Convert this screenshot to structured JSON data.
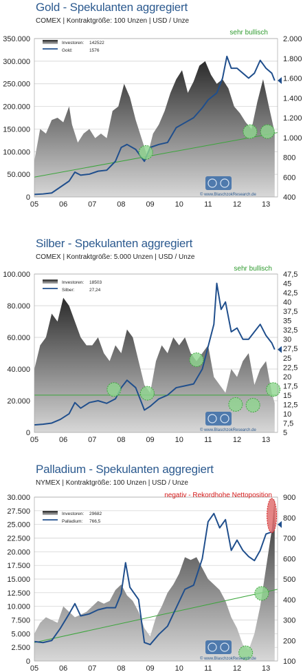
{
  "charts": [
    {
      "title": "Gold - Spekulanten aggregiert",
      "subtitle": "COMEX  |   Kontraktgröße: 100 Unzen   |   USD / Unze",
      "annotation": "sehr bullisch",
      "annotation_color": "#2e9a2e",
      "legend_rows": [
        {
          "label": "Investoren:",
          "value": "142522"
        },
        {
          "label": "Gold:",
          "value": "1576"
        }
      ],
      "logo_url": "© www.BlaschzokResearch.de"
    },
    {
      "title": "Silber - Spekulanten aggregiert",
      "subtitle": "COMEX  |   Kontraktgröße: 5.000 Unzen   |   USD / Unze",
      "annotation": "sehr bullisch",
      "annotation_color": "#2e9a2e",
      "legend_rows": [
        {
          "label": "Investoren:",
          "value": "18503"
        },
        {
          "label": "Silber:",
          "value": "27,24"
        }
      ],
      "logo_url": "© www.BlaschzokResearch.de"
    },
    {
      "title": "Palladium - Spekulanten aggregiert",
      "subtitle": "NYMEX  |   Kontraktgröße: 100 Unzen   |   USD / Unze",
      "annotation": "negativ - Rekordhohe Nettoposition",
      "annotation_color": "#d41a1a",
      "legend_rows": [
        {
          "label": "Investoren:",
          "value": "29682"
        },
        {
          "label": "Palladium:",
          "value": "766,5"
        }
      ],
      "logo_url": "© www.BlaschzokResearch.de"
    }
  ],
  "colors": {
    "price_line": "#1f4e8c",
    "trend_line": "#3aa53a",
    "circle_fill": "#8fd68f",
    "circle_stroke": "#3aa53a",
    "circle_red_fill": "#e07070",
    "circle_red_stroke": "#d41a1a",
    "grid": "#cccccc"
  },
  "chart_data": [
    {
      "type": "area",
      "title": "Gold - Spekulanten aggregiert",
      "x_tick_labels": [
        "05",
        "06",
        "07",
        "08",
        "09",
        "10",
        "11",
        "12",
        "13"
      ],
      "x_range": [
        2005.0,
        2013.4
      ],
      "y_left": {
        "ticks": [
          "0",
          "50.000",
          "100.000",
          "150.000",
          "200.000",
          "250.000",
          "300.000",
          "350.000"
        ],
        "range": [
          0,
          350000
        ]
      },
      "y_right": {
        "ticks": [
          "400",
          "600",
          "800",
          "1.000",
          "1.200",
          "1.400",
          "1.600",
          "1.800",
          "2.000"
        ],
        "range": [
          400,
          2000
        ]
      },
      "grid": true,
      "legend_position": "top-left",
      "series": [
        {
          "name": "Investoren",
          "axis": "left",
          "x": [
            2005.0,
            2005.2,
            2005.4,
            2005.6,
            2005.8,
            2006.0,
            2006.2,
            2006.3,
            2006.5,
            2006.7,
            2006.9,
            2007.1,
            2007.3,
            2007.5,
            2007.7,
            2007.9,
            2008.1,
            2008.3,
            2008.5,
            2008.7,
            2008.9,
            2009.1,
            2009.3,
            2009.5,
            2009.7,
            2009.9,
            2010.1,
            2010.3,
            2010.5,
            2010.7,
            2010.9,
            2011.1,
            2011.3,
            2011.5,
            2011.7,
            2011.9,
            2012.1,
            2012.3,
            2012.5,
            2012.7,
            2012.9,
            2013.1,
            2013.3
          ],
          "values": [
            80000,
            150000,
            140000,
            170000,
            175000,
            165000,
            200000,
            160000,
            120000,
            140000,
            150000,
            130000,
            140000,
            130000,
            190000,
            200000,
            250000,
            220000,
            170000,
            130000,
            90000,
            140000,
            160000,
            190000,
            230000,
            260000,
            280000,
            230000,
            255000,
            290000,
            300000,
            270000,
            250000,
            260000,
            240000,
            200000,
            185000,
            165000,
            150000,
            210000,
            260000,
            200000,
            142522
          ]
        },
        {
          "name": "Gold",
          "axis": "right",
          "x": [
            2005.0,
            2005.3,
            2005.6,
            2005.9,
            2006.2,
            2006.4,
            2006.6,
            2006.9,
            2007.2,
            2007.5,
            2007.8,
            2008.0,
            2008.2,
            2008.5,
            2008.8,
            2009.0,
            2009.3,
            2009.6,
            2009.9,
            2010.2,
            2010.5,
            2010.8,
            2011.0,
            2011.3,
            2011.5,
            2011.65,
            2011.8,
            2012.0,
            2012.2,
            2012.4,
            2012.6,
            2012.8,
            2013.0,
            2013.2,
            2013.3
          ],
          "values": [
            425,
            430,
            440,
            500,
            560,
            650,
            620,
            630,
            660,
            670,
            760,
            900,
            930,
            880,
            760,
            900,
            930,
            950,
            1100,
            1150,
            1200,
            1300,
            1380,
            1450,
            1600,
            1820,
            1700,
            1700,
            1650,
            1600,
            1650,
            1780,
            1700,
            1650,
            1576
          ]
        }
      ],
      "trendline": {
        "x": [
          2005.0,
          2013.4
        ],
        "values": [
          600,
          1050
        ],
        "axis": "right"
      },
      "highlights": [
        {
          "x": 2008.85,
          "y": 850
        },
        {
          "x": 2012.45,
          "y": 1060
        },
        {
          "x": 2013.05,
          "y": 1060
        }
      ]
    },
    {
      "type": "area",
      "title": "Silber - Spekulanten aggregiert",
      "x_tick_labels": [
        "05",
        "06",
        "07",
        "08",
        "09",
        "10",
        "11",
        "12",
        "13"
      ],
      "x_range": [
        2005.0,
        2013.4
      ],
      "y_left": {
        "ticks": [
          "0",
          "20.000",
          "40.000",
          "60.000",
          "80.000",
          "100.000"
        ],
        "range": [
          0,
          100000
        ]
      },
      "y_right": {
        "ticks": [
          "5",
          "7,5",
          "10",
          "12,5",
          "15",
          "17,5",
          "20",
          "22,5",
          "25",
          "27,5",
          "30",
          "32,5",
          "35",
          "37,5",
          "40",
          "42,5",
          "45",
          "47,5"
        ],
        "range": [
          5,
          47.5
        ]
      },
      "grid": true,
      "legend_position": "top-left",
      "series": [
        {
          "name": "Investoren",
          "axis": "left",
          "x": [
            2005.0,
            2005.2,
            2005.4,
            2005.6,
            2005.8,
            2006.0,
            2006.2,
            2006.4,
            2006.6,
            2006.8,
            2007.0,
            2007.2,
            2007.4,
            2007.6,
            2007.8,
            2008.0,
            2008.2,
            2008.4,
            2008.6,
            2008.8,
            2009.0,
            2009.2,
            2009.4,
            2009.6,
            2009.8,
            2010.0,
            2010.2,
            2010.4,
            2010.6,
            2010.8,
            2011.0,
            2011.2,
            2011.4,
            2011.6,
            2011.8,
            2012.0,
            2012.2,
            2012.4,
            2012.6,
            2012.8,
            2013.0,
            2013.2,
            2013.3
          ],
          "values": [
            40000,
            55000,
            60000,
            75000,
            70000,
            85000,
            80000,
            70000,
            60000,
            55000,
            55000,
            60000,
            50000,
            45000,
            55000,
            50000,
            65000,
            60000,
            45000,
            30000,
            25000,
            45000,
            55000,
            50000,
            60000,
            55000,
            60000,
            50000,
            45000,
            50000,
            55000,
            35000,
            30000,
            25000,
            40000,
            35000,
            45000,
            50000,
            30000,
            40000,
            45000,
            25000,
            18503
          ]
        },
        {
          "name": "Silber",
          "axis": "right",
          "x": [
            2005.0,
            2005.3,
            2005.6,
            2005.9,
            2006.2,
            2006.4,
            2006.6,
            2006.9,
            2007.2,
            2007.5,
            2007.8,
            2008.0,
            2008.2,
            2008.5,
            2008.8,
            2009.0,
            2009.3,
            2009.6,
            2009.9,
            2010.2,
            2010.5,
            2010.8,
            2011.0,
            2011.2,
            2011.3,
            2011.45,
            2011.6,
            2011.8,
            2012.0,
            2012.2,
            2012.4,
            2012.6,
            2012.8,
            2013.0,
            2013.2,
            2013.3
          ],
          "values": [
            7,
            7.2,
            7.5,
            8.5,
            10,
            13,
            11.5,
            13,
            13.5,
            12.8,
            14,
            17,
            19,
            17,
            11,
            12,
            14,
            15,
            17,
            17.5,
            18,
            22,
            28,
            34,
            45,
            38,
            40,
            32,
            33,
            30,
            30,
            32,
            34,
            31,
            29,
            27.24
          ]
        }
      ],
      "trendline": {
        "x": [
          2005.0,
          2013.4
        ],
        "values": [
          15,
          15
        ],
        "axis": "right"
      },
      "highlights": [
        {
          "x": 2007.75,
          "y": 16.5
        },
        {
          "x": 2008.9,
          "y": 15.5
        },
        {
          "x": 2010.6,
          "y": 24.5
        },
        {
          "x": 2011.95,
          "y": 12.5
        },
        {
          "x": 2012.55,
          "y": 12.3
        },
        {
          "x": 2013.25,
          "y": 16.5
        }
      ]
    },
    {
      "type": "area",
      "title": "Palladium - Spekulanten aggregiert",
      "x_tick_labels": [
        "05",
        "06",
        "07",
        "08",
        "09",
        "10",
        "11",
        "12",
        "13"
      ],
      "x_range": [
        2005.0,
        2013.4
      ],
      "y_left": {
        "ticks": [
          "0",
          "2.500",
          "5.000",
          "7.500",
          "10.000",
          "12.500",
          "15.000",
          "17.500",
          "20.000",
          "22.500",
          "25.000",
          "27.500",
          "30.000"
        ],
        "range": [
          0,
          30000
        ]
      },
      "y_right": {
        "ticks": [
          "100",
          "200",
          "300",
          "400",
          "500",
          "600",
          "700",
          "800",
          "900"
        ],
        "range": [
          100,
          900
        ]
      },
      "grid": true,
      "legend_position": "top-left",
      "series": [
        {
          "name": "Investoren",
          "axis": "left",
          "x": [
            2005.0,
            2005.2,
            2005.4,
            2005.6,
            2005.8,
            2006.0,
            2006.2,
            2006.4,
            2006.6,
            2006.8,
            2007.0,
            2007.2,
            2007.4,
            2007.6,
            2007.8,
            2008.0,
            2008.2,
            2008.4,
            2008.6,
            2008.8,
            2009.0,
            2009.2,
            2009.4,
            2009.6,
            2009.8,
            2010.0,
            2010.2,
            2010.4,
            2010.6,
            2010.8,
            2011.0,
            2011.2,
            2011.4,
            2011.6,
            2011.8,
            2012.0,
            2012.2,
            2012.4,
            2012.6,
            2012.8,
            2013.0,
            2013.2,
            2013.3
          ],
          "values": [
            5000,
            7000,
            8000,
            7500,
            7000,
            10000,
            9000,
            8000,
            8500,
            9000,
            10000,
            11000,
            10500,
            11000,
            13000,
            14000,
            12000,
            11000,
            9000,
            6000,
            4500,
            8000,
            10000,
            12500,
            14000,
            16000,
            19000,
            18500,
            19000,
            17000,
            15000,
            14000,
            13000,
            11000,
            8000,
            6000,
            3000,
            2000,
            5000,
            10000,
            17000,
            24000,
            29682
          ]
        },
        {
          "name": "Palladium",
          "axis": "right",
          "x": [
            2005.0,
            2005.3,
            2005.6,
            2005.9,
            2006.2,
            2006.4,
            2006.6,
            2006.9,
            2007.2,
            2007.5,
            2007.8,
            2008.0,
            2008.15,
            2008.3,
            2008.6,
            2008.8,
            2009.0,
            2009.3,
            2009.6,
            2009.9,
            2010.2,
            2010.5,
            2010.8,
            2011.0,
            2011.2,
            2011.4,
            2011.6,
            2011.8,
            2012.0,
            2012.2,
            2012.4,
            2012.6,
            2012.8,
            2013.0,
            2013.2,
            2013.3
          ],
          "values": [
            195,
            190,
            200,
            260,
            330,
            380,
            320,
            330,
            350,
            360,
            360,
            430,
            580,
            460,
            400,
            190,
            180,
            230,
            270,
            360,
            450,
            470,
            600,
            780,
            820,
            750,
            790,
            640,
            690,
            640,
            610,
            590,
            640,
            720,
            730,
            766.5
          ]
        }
      ],
      "trendline": {
        "x": [
          2005.0,
          2013.4
        ],
        "values": [
          190,
          450
        ],
        "axis": "right"
      },
      "highlights": [
        {
          "x": 2012.3,
          "y": 140
        },
        {
          "x": 2012.85,
          "y": 430
        }
      ],
      "highlight_red": {
        "x": 2013.2,
        "y": 810
      }
    }
  ]
}
